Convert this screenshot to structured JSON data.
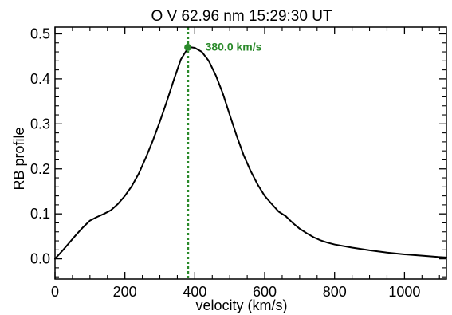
{
  "chart_data": {
    "type": "line",
    "title": "O V 62.96 nm  15:29:30 UT",
    "xlabel": "velocity (km/s)",
    "ylabel": "RB profile",
    "xlim": [
      0,
      1120
    ],
    "ylim": [
      -0.045,
      0.515
    ],
    "x_ticks": [
      0,
      200,
      400,
      600,
      800,
      1000
    ],
    "x_tick_labels": [
      "0",
      "200",
      "400",
      "600",
      "800",
      "1000"
    ],
    "y_ticks": [
      0.0,
      0.1,
      0.2,
      0.3,
      0.4,
      0.5
    ],
    "y_tick_labels": [
      "0.0",
      "0.1",
      "0.2",
      "0.3",
      "0.4",
      "0.5"
    ],
    "grid": false,
    "series": [
      {
        "color": "#000000",
        "x": [
          0,
          20,
          40,
          60,
          80,
          100,
          120,
          140,
          160,
          180,
          200,
          220,
          240,
          260,
          280,
          300,
          320,
          340,
          360,
          380,
          390,
          400,
          420,
          440,
          460,
          480,
          500,
          520,
          540,
          560,
          580,
          600,
          620,
          640,
          660,
          680,
          700,
          720,
          740,
          760,
          780,
          800,
          850,
          900,
          950,
          1000,
          1050,
          1100,
          1120
        ],
        "y": [
          0.0,
          0.017,
          0.035,
          0.053,
          0.07,
          0.085,
          0.093,
          0.1,
          0.108,
          0.122,
          0.14,
          0.162,
          0.19,
          0.225,
          0.263,
          0.305,
          0.35,
          0.398,
          0.443,
          0.468,
          0.47,
          0.469,
          0.46,
          0.44,
          0.408,
          0.368,
          0.32,
          0.273,
          0.23,
          0.195,
          0.165,
          0.14,
          0.122,
          0.105,
          0.095,
          0.08,
          0.067,
          0.057,
          0.048,
          0.041,
          0.036,
          0.032,
          0.025,
          0.019,
          0.014,
          0.01,
          0.007,
          0.004,
          0.003
        ]
      }
    ],
    "marker": {
      "x": 380.0,
      "y": 0.47,
      "label": "380.0 km/s",
      "color": "#2a8a2a"
    }
  }
}
